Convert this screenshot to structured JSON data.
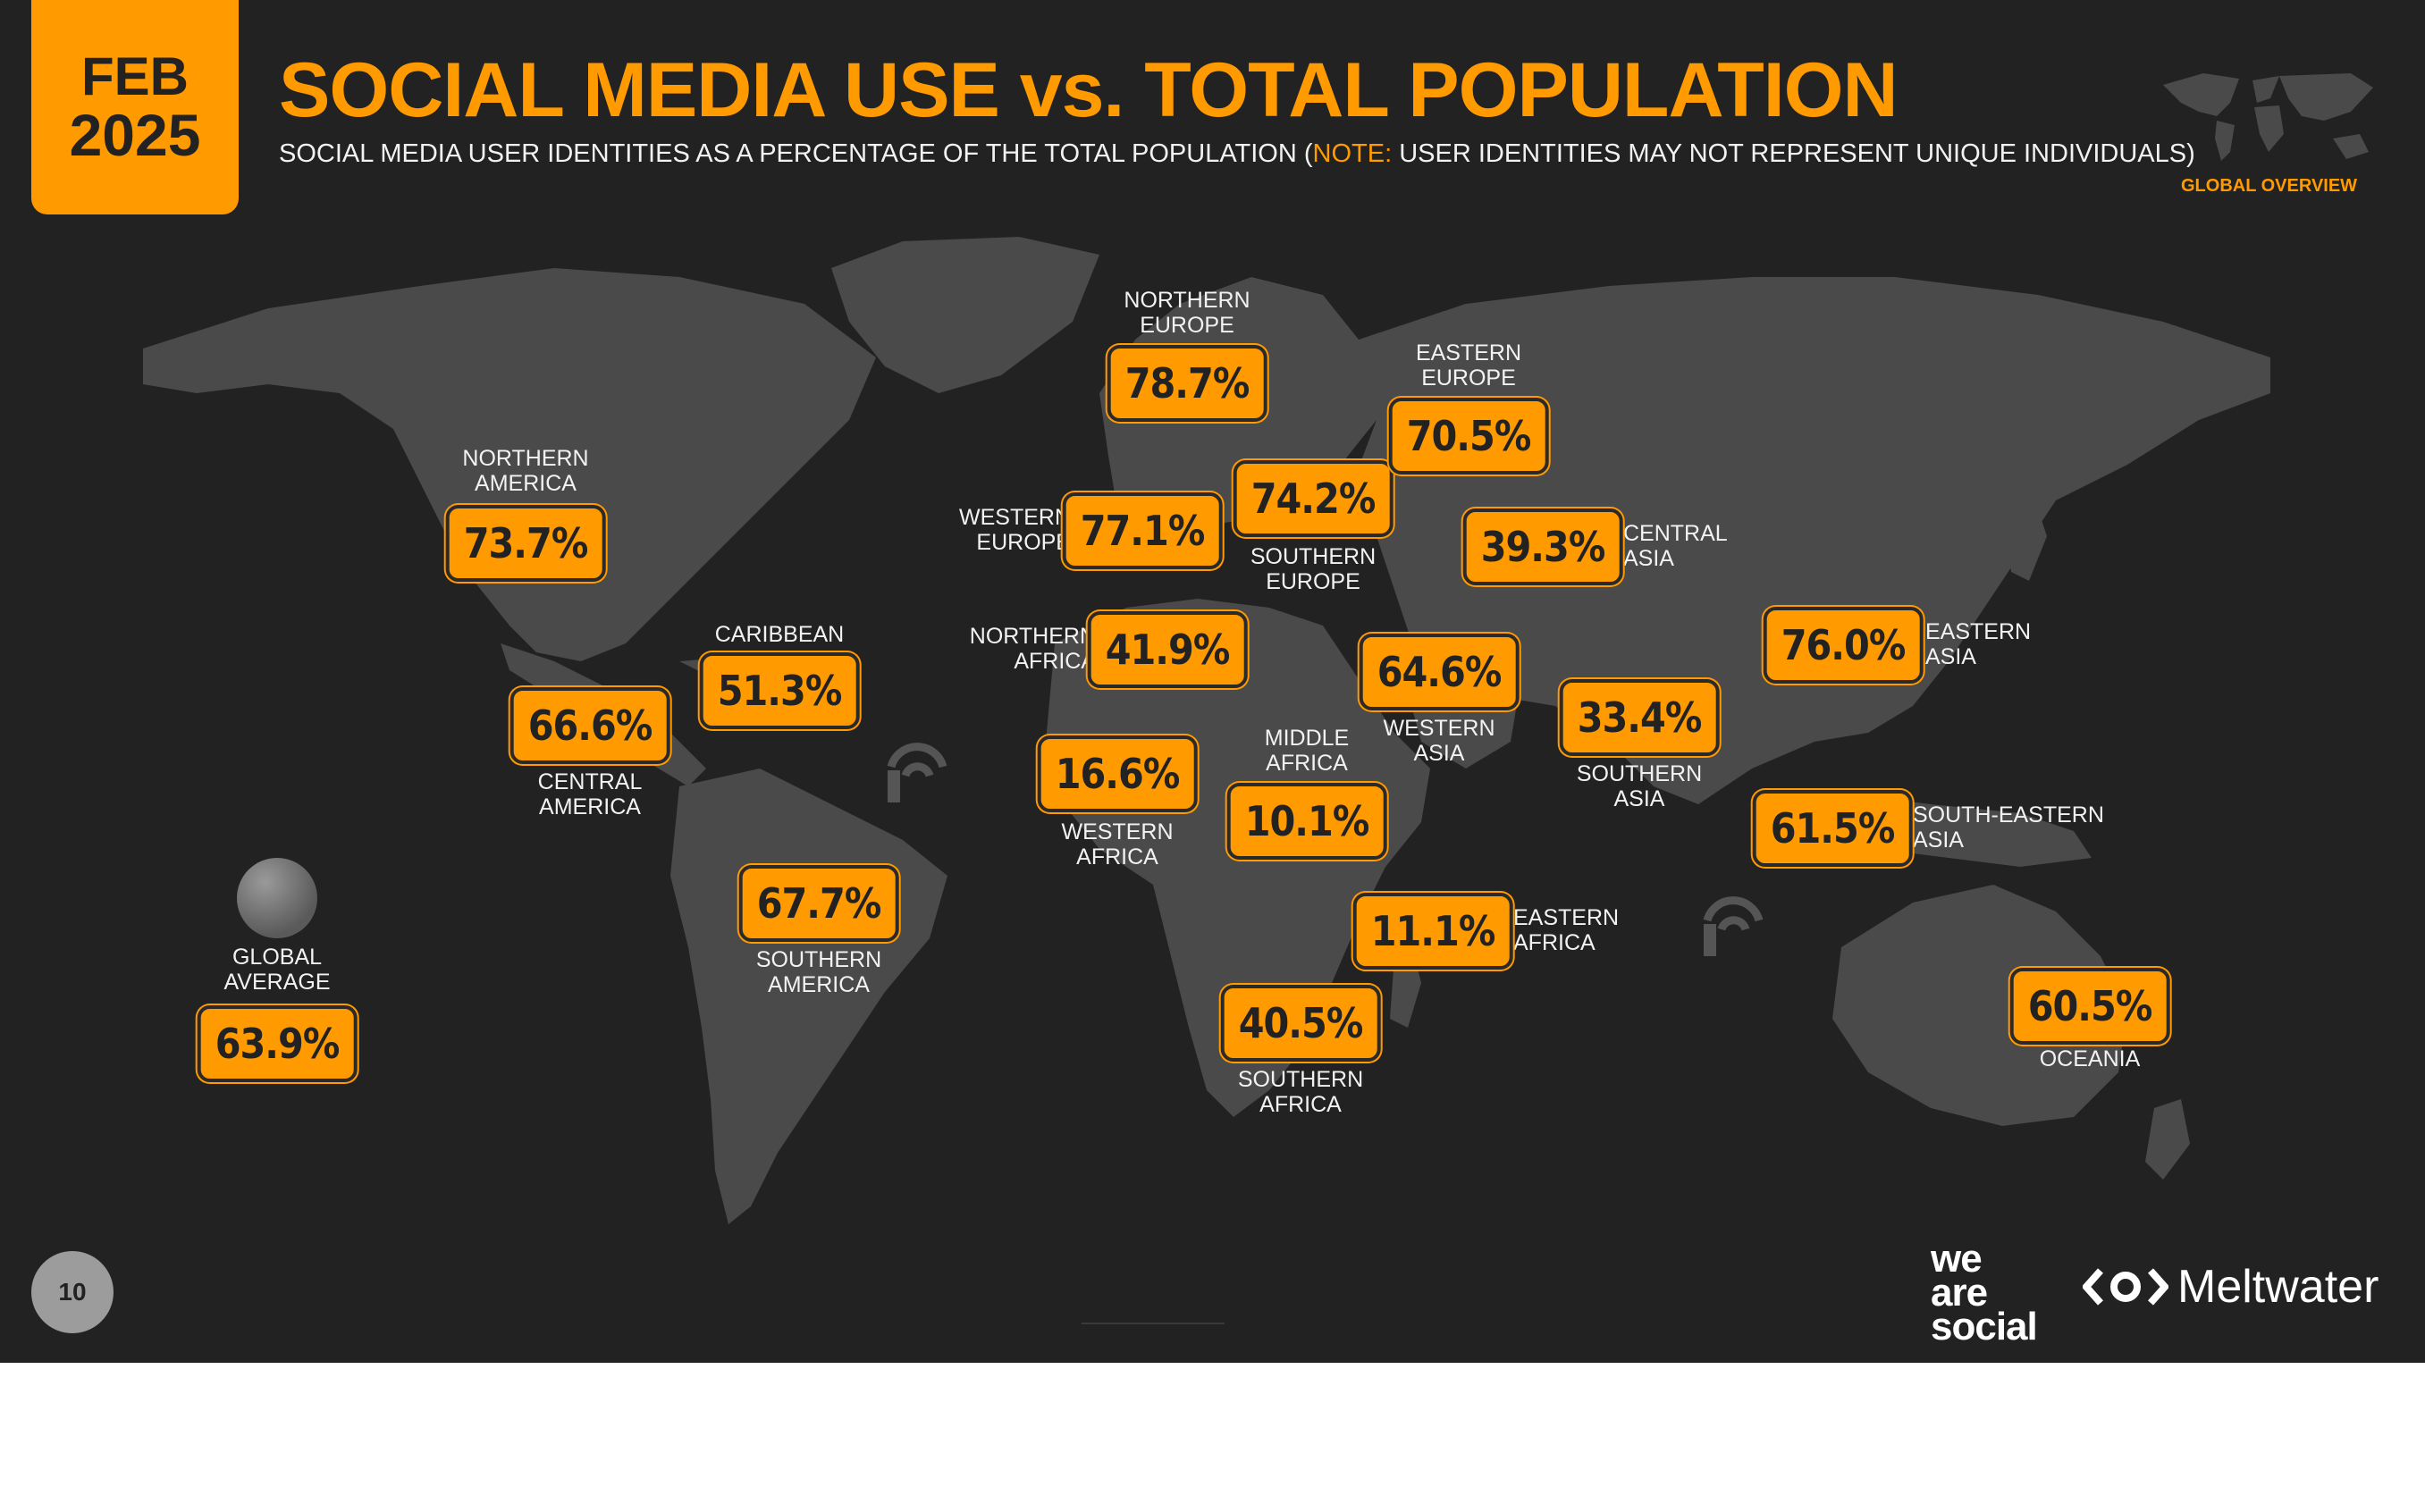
{
  "header": {
    "month": "FEB",
    "year": "2025",
    "title": "SOCIAL MEDIA USE vs. TOTAL POPULATION",
    "subtitle_main": "SOCIAL MEDIA USER IDENTITIES AS A PERCENTAGE OF THE TOTAL POPULATION (",
    "subtitle_note_label": "NOTE:",
    "subtitle_note_text": " USER IDENTITIES MAY NOT REPRESENT UNIQUE INDIVIDUALS)",
    "section_label": "GLOBAL OVERVIEW"
  },
  "regions": [
    {
      "id": "northern-america",
      "label": "NORTHERN\nAMERICA",
      "value": "73.7%"
    },
    {
      "id": "central-america",
      "label": "CENTRAL\nAMERICA",
      "value": "66.6%"
    },
    {
      "id": "caribbean",
      "label": "CARIBBEAN",
      "value": "51.3%"
    },
    {
      "id": "southern-america",
      "label": "SOUTHERN\nAMERICA",
      "value": "67.7%"
    },
    {
      "id": "northern-europe",
      "label": "NORTHERN\nEUROPE",
      "value": "78.7%"
    },
    {
      "id": "western-europe",
      "label": "WESTERN\nEUROPE",
      "value": "77.1%"
    },
    {
      "id": "southern-europe",
      "label": "SOUTHERN\nEUROPE",
      "value": "74.2%"
    },
    {
      "id": "eastern-europe",
      "label": "EASTERN\nEUROPE",
      "value": "70.5%"
    },
    {
      "id": "northern-africa",
      "label": "NORTHERN\nAFRICA",
      "value": "41.9%"
    },
    {
      "id": "western-africa",
      "label": "WESTERN\nAFRICA",
      "value": "16.6%"
    },
    {
      "id": "middle-africa",
      "label": "MIDDLE\nAFRICA",
      "value": "10.1%"
    },
    {
      "id": "eastern-africa",
      "label": "EASTERN\nAFRICA",
      "value": "11.1%"
    },
    {
      "id": "southern-africa",
      "label": "SOUTHERN\nAFRICA",
      "value": "40.5%"
    },
    {
      "id": "western-asia",
      "label": "WESTERN\nASIA",
      "value": "64.6%"
    },
    {
      "id": "central-asia",
      "label": "CENTRAL\nASIA",
      "value": "39.3%"
    },
    {
      "id": "southern-asia",
      "label": "SOUTHERN\nASIA",
      "value": "33.4%"
    },
    {
      "id": "eastern-asia",
      "label": "EASTERN\nASIA",
      "value": "76.0%"
    },
    {
      "id": "south-eastern-asia",
      "label": "SOUTH-EASTERN\nASIA",
      "value": "61.5%"
    },
    {
      "id": "oceania",
      "label": "OCEANIA",
      "value": "60.5%"
    }
  ],
  "global": {
    "label": "GLOBAL\nAVERAGE",
    "value": "63.9%"
  },
  "footer": {
    "page_number": "10",
    "brand_we_are_social": "we\nare\nsocial",
    "brand_meltwater": "Meltwater"
  },
  "colors": {
    "accent": "#ff9a00",
    "background": "#222222",
    "land": "#4a4a4a",
    "text": "#f2f2f2"
  },
  "icons": [
    "world-map-icon",
    "globe-icon",
    "datareportal-watermark-icon",
    "meltwater-logo-icon"
  ]
}
